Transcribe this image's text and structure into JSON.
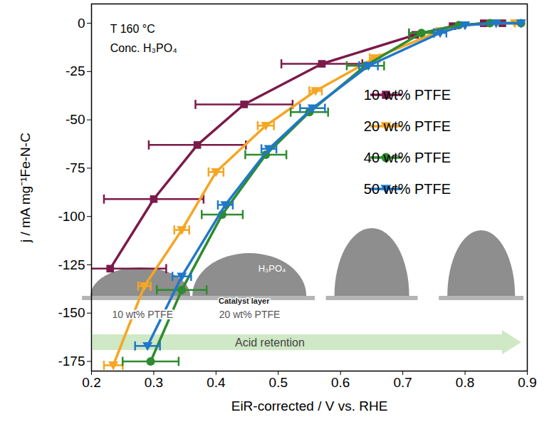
{
  "chart_data": {
    "type": "line",
    "x_label": "EiR-corrected / V vs. RHE",
    "y_label": "j / mA mg⁻¹Fe-N-C",
    "xlim": [
      0.2,
      0.9
    ],
    "xticks": [
      0.2,
      0.3,
      0.4,
      0.5,
      0.6,
      0.7,
      0.8,
      0.9
    ],
    "ylim": [
      -180,
      10
    ],
    "yticks": [
      -175,
      -150,
      -125,
      -100,
      -75,
      -50,
      -25,
      0
    ],
    "grid": false,
    "legend": "right",
    "annotations": [
      {
        "text": "T 160 °C",
        "x": 0.23,
        "y": -3
      },
      {
        "text": "Conc. H₃PO₄",
        "x": 0.23,
        "y": -13
      }
    ],
    "inset_labels": [
      {
        "text": "10 wt% PTFE",
        "x": 0.282,
        "y": -151
      },
      {
        "text": "20 wt% PTFE",
        "x": 0.454,
        "y": -151
      }
    ],
    "inset_liquid": {
      "text": "H₃PO₄",
      "x": 0.49,
      "y": -127
    },
    "inset_substrate": {
      "text": "Catalyst layer",
      "x": 0.445,
      "y": -144
    },
    "arrow_label": "Acid retention",
    "series": [
      {
        "name": "10 wt% PTFE",
        "color": "#7b1a4b",
        "marker": "square",
        "line_style": "solid",
        "x": [
          0.23,
          0.3,
          0.37,
          0.445,
          0.57,
          0.72,
          0.78,
          0.83,
          0.86
        ],
        "values": [
          -127,
          -91,
          -63,
          -42,
          -21,
          -6,
          -1.5,
          0,
          0
        ],
        "xerr": [
          0.09,
          0.08,
          0.078,
          0.078,
          0.065,
          0.01,
          null,
          null,
          null
        ]
      },
      {
        "name": "20 wt% PTFE",
        "color": "#f5a623",
        "marker": "triangle-down",
        "line_style": "solid",
        "x": [
          0.235,
          0.285,
          0.345,
          0.4,
          0.48,
          0.56,
          0.655,
          0.76,
          0.8,
          0.85,
          0.88
        ],
        "values": [
          -177,
          -136,
          -107,
          -77,
          -53,
          -35,
          -18,
          -4,
          -1,
          0,
          0
        ],
        "xerr": [
          0.015,
          0.01,
          0.012,
          0.012,
          0.013,
          0.01,
          0.008,
          null,
          null,
          null,
          null
        ]
      },
      {
        "name": "40 wt% PTFE",
        "color": "#2e8b2e",
        "marker": "circle",
        "line_style": "solid",
        "x": [
          0.295,
          0.345,
          0.41,
          0.48,
          0.55,
          0.64,
          0.73,
          0.79,
          0.84,
          0.89
        ],
        "values": [
          -175,
          -138,
          -99,
          -68,
          -46,
          -22,
          -5,
          -1,
          0,
          0
        ],
        "xerr": [
          0.045,
          0.04,
          0.033,
          0.033,
          0.03,
          0.03,
          0.02,
          null,
          null,
          null
        ]
      },
      {
        "name": "50 wt% PTFE",
        "color": "#1f78c8",
        "marker": "triangle-down",
        "line_style": "solid",
        "x": [
          0.29,
          0.345,
          0.415,
          0.485,
          0.555,
          0.645,
          0.76,
          0.8,
          0.85,
          0.89
        ],
        "values": [
          -167,
          -131,
          -94,
          -65,
          -44,
          -22,
          -5,
          -1,
          0,
          0
        ],
        "xerr": [
          0.02,
          0.015,
          0.012,
          0.012,
          0.02,
          0.015,
          0.01,
          null,
          null,
          null
        ]
      }
    ]
  }
}
